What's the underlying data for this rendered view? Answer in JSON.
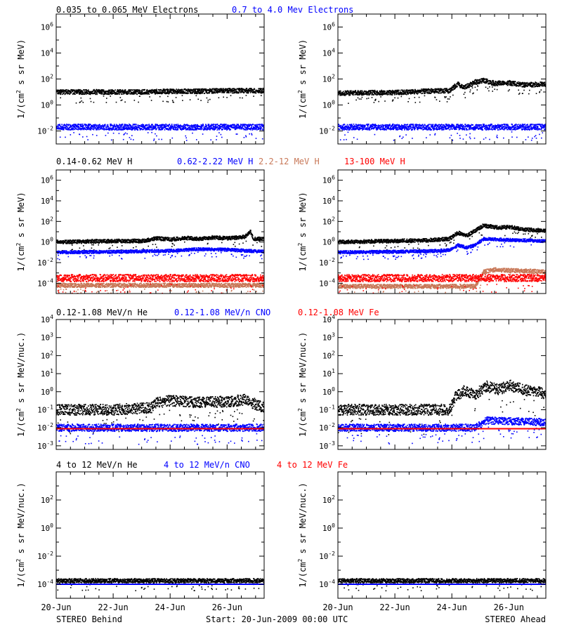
{
  "colors": {
    "black": "#000000",
    "blue": "#0000ff",
    "brown": "#c87858",
    "red": "#ff0000"
  },
  "legends": [
    [
      {
        "text": "0.035 to 0.065 MeV Electrons",
        "color": "#000000"
      },
      {
        "text": "0.7 to 4.0 Mev Electrons",
        "color": "#0000ff"
      }
    ],
    [
      {
        "text": "0.14-0.62 MeV H",
        "color": "#000000"
      },
      {
        "text": "0.62-2.22 MeV H",
        "color": "#0000ff"
      },
      {
        "text": "2.2-12 MeV H",
        "color": "#c87858"
      },
      {
        "text": "13-100 MeV H",
        "color": "#ff0000"
      }
    ],
    [
      {
        "text": "0.12-1.08 MeV/n He",
        "color": "#000000"
      },
      {
        "text": "0.12-1.08 MeV/n CNO",
        "color": "#0000ff"
      },
      {
        "text": "0.12-1.08 MeV Fe",
        "color": "#ff0000"
      }
    ],
    [
      {
        "text": "4 to 12 MeV/n He",
        "color": "#000000"
      },
      {
        "text": "4 to 12 MeV/n CNO",
        "color": "#0000ff"
      },
      {
        "text": "4 to 12 MeV Fe",
        "color": "#ff0000"
      }
    ]
  ],
  "footer": {
    "left": "STEREO Behind",
    "center": "Start: 20-Jun-2009 00:00 UTC",
    "right": "STEREO Ahead"
  },
  "x_axis": {
    "ticks": [
      {
        "day": 0,
        "label": "20-Jun"
      },
      {
        "day": 2,
        "label": "22-Jun"
      },
      {
        "day": 4,
        "label": "24-Jun"
      },
      {
        "day": 6,
        "label": "26-Jun"
      }
    ],
    "minor_step_days": 0.5,
    "range_days": [
      0,
      7.3
    ]
  },
  "chart_data": [
    {
      "type": "scatter",
      "row": 0,
      "column": "left",
      "spacecraft": "STEREO Behind",
      "ylabel": "1/(cm2 s sr MeV)",
      "yscale": "log",
      "ylim_exp": [
        -3,
        7
      ],
      "yticks": [
        {
          "exp": -2,
          "label": "10-2"
        },
        {
          "exp": 0,
          "label": "100"
        },
        {
          "exp": 2,
          "label": "102"
        },
        {
          "exp": 4,
          "label": "104"
        },
        {
          "exp": 6,
          "label": "106"
        }
      ],
      "series": [
        {
          "name": "0.035 to 0.065 MeV Electrons",
          "color": "#000000",
          "band": 0.18,
          "x": [
            0,
            1,
            2,
            3,
            4,
            5,
            6,
            7.3
          ],
          "log10_y": [
            1.0,
            1.0,
            1.0,
            1.0,
            1.05,
            1.05,
            1.1,
            1.1
          ]
        },
        {
          "name": "0.7 to 4.0 Mev Electrons",
          "color": "#0000ff",
          "band": 0.22,
          "x": [
            0,
            7.3
          ],
          "log10_y": [
            -1.7,
            -1.7
          ]
        }
      ]
    },
    {
      "type": "scatter",
      "row": 0,
      "column": "right",
      "spacecraft": "STEREO Ahead",
      "ylabel": "1/(cm2 s sr MeV)",
      "yscale": "log",
      "ylim_exp": [
        -3,
        7
      ],
      "yticks": [
        {
          "exp": -2,
          "label": "10-2"
        },
        {
          "exp": 0,
          "label": "100"
        },
        {
          "exp": 2,
          "label": "102"
        },
        {
          "exp": 4,
          "label": "104"
        },
        {
          "exp": 6,
          "label": "106"
        }
      ],
      "series": [
        {
          "name": "0.035 to 0.065 MeV Electrons",
          "color": "#000000",
          "band": 0.18,
          "x": [
            0,
            1,
            2,
            3,
            3.9,
            4.2,
            4.4,
            4.8,
            5.1,
            5.5,
            6,
            6.5,
            7.3
          ],
          "log10_y": [
            0.9,
            0.95,
            0.95,
            1.05,
            1.1,
            1.6,
            1.3,
            1.75,
            1.9,
            1.65,
            1.7,
            1.55,
            1.6
          ]
        },
        {
          "name": "0.7 to 4.0 Mev Electrons",
          "color": "#0000ff",
          "band": 0.22,
          "x": [
            0,
            7.3
          ],
          "log10_y": [
            -1.7,
            -1.7
          ]
        }
      ]
    },
    {
      "type": "scatter",
      "row": 1,
      "column": "left",
      "spacecraft": "STEREO Behind",
      "ylabel": "1/(cm2 s sr MeV)",
      "yscale": "log",
      "ylim_exp": [
        -5,
        7
      ],
      "yticks": [
        {
          "exp": -4,
          "label": "10-4"
        },
        {
          "exp": -2,
          "label": "10-2"
        },
        {
          "exp": 0,
          "label": "100"
        },
        {
          "exp": 2,
          "label": "102"
        },
        {
          "exp": 4,
          "label": "104"
        },
        {
          "exp": 6,
          "label": "106"
        }
      ],
      "series": [
        {
          "name": "0.14-0.62 MeV H",
          "color": "#000000",
          "band": 0.18,
          "x": [
            0,
            1,
            2,
            3,
            3.5,
            4,
            4.5,
            5,
            5.5,
            6,
            6.6,
            6.8,
            6.9,
            7.3
          ],
          "log10_y": [
            0.0,
            0.05,
            0.1,
            0.1,
            0.35,
            0.25,
            0.4,
            0.3,
            0.45,
            0.35,
            0.5,
            1.0,
            0.3,
            0.3
          ]
        },
        {
          "name": "0.62-2.22 MeV H",
          "color": "#0000ff",
          "band": 0.15,
          "x": [
            0,
            2,
            4,
            5,
            6,
            7.3
          ],
          "log10_y": [
            -1.0,
            -0.95,
            -0.85,
            -0.7,
            -0.75,
            -0.95
          ]
        },
        {
          "name": "2.2-12 MeV H",
          "color": "#c87858",
          "band": 0.2,
          "x": [
            0,
            7.3
          ],
          "log10_y": [
            -4.2,
            -4.2
          ]
        },
        {
          "name": "13-100 MeV H",
          "color": "#ff0000",
          "band": 0.35,
          "x": [
            0,
            7.3
          ],
          "log10_y": [
            -3.5,
            -3.5
          ]
        }
      ]
    },
    {
      "type": "scatter",
      "row": 1,
      "column": "right",
      "spacecraft": "STEREO Ahead",
      "ylabel": "1/(cm2 s sr MeV)",
      "yscale": "log",
      "ylim_exp": [
        -5,
        7
      ],
      "yticks": [
        {
          "exp": -4,
          "label": "10-4"
        },
        {
          "exp": -2,
          "label": "10-2"
        },
        {
          "exp": 0,
          "label": "100"
        },
        {
          "exp": 2,
          "label": "102"
        },
        {
          "exp": 4,
          "label": "104"
        },
        {
          "exp": 6,
          "label": "106"
        }
      ],
      "series": [
        {
          "name": "0.14-0.62 MeV H",
          "color": "#000000",
          "band": 0.18,
          "x": [
            0,
            1,
            2,
            3,
            3.9,
            4.2,
            4.5,
            4.8,
            5.1,
            5.6,
            6,
            6.6,
            7.3
          ],
          "log10_y": [
            0.0,
            0.05,
            0.1,
            0.15,
            0.3,
            0.9,
            0.6,
            1.1,
            1.6,
            1.4,
            1.45,
            1.2,
            1.1
          ]
        },
        {
          "name": "0.62-2.22 MeV H",
          "color": "#0000ff",
          "band": 0.15,
          "x": [
            0,
            2,
            3,
            3.9,
            4.2,
            4.5,
            4.8,
            5.1,
            6,
            7.3
          ],
          "log10_y": [
            -1.0,
            -0.95,
            -0.9,
            -0.8,
            -0.3,
            -0.55,
            -0.3,
            0.3,
            0.2,
            0.1
          ]
        },
        {
          "name": "2.2-12 MeV H",
          "color": "#c87858",
          "band": 0.2,
          "x": [
            0,
            4.8,
            5.1,
            5.5,
            6,
            7.3
          ],
          "log10_y": [
            -4.3,
            -4.3,
            -2.9,
            -2.7,
            -2.75,
            -2.9
          ]
        },
        {
          "name": "13-100 MeV H",
          "color": "#ff0000",
          "band": 0.35,
          "x": [
            0,
            7.3
          ],
          "log10_y": [
            -3.5,
            -3.5
          ]
        }
      ]
    },
    {
      "type": "scatter",
      "row": 2,
      "column": "left",
      "spacecraft": "STEREO Behind",
      "ylabel": "1/(cm2 s sr MeV/nuc.)",
      "yscale": "log",
      "ylim_exp": [
        -3.2,
        4
      ],
      "yticks": [
        {
          "exp": -3,
          "label": "10-3"
        },
        {
          "exp": -2,
          "label": "10-2"
        },
        {
          "exp": -1,
          "label": "10-1"
        },
        {
          "exp": 0,
          "label": "100"
        },
        {
          "exp": 1,
          "label": "101"
        },
        {
          "exp": 2,
          "label": "102"
        },
        {
          "exp": 3,
          "label": "103"
        },
        {
          "exp": 4,
          "label": "104"
        }
      ],
      "series": [
        {
          "name": "0.12-1.08 MeV/n He",
          "color": "#000000",
          "band": 0.3,
          "x": [
            0,
            2,
            3.3,
            3.5,
            4,
            5,
            6,
            6.6,
            7.3
          ],
          "log10_y": [
            -1.0,
            -1.0,
            -0.9,
            -0.6,
            -0.5,
            -0.6,
            -0.55,
            -0.45,
            -0.9
          ]
        },
        {
          "name": "0.12-1.08 MeV/n CNO",
          "color": "#0000ff",
          "band": 0.2,
          "x": [
            0,
            7.3
          ],
          "log10_y": [
            -2.0,
            -2.0
          ]
        },
        {
          "name": "0.12-1.08 MeV Fe",
          "color": "#ff0000",
          "band": 0.0,
          "x": [
            0,
            7.3
          ],
          "log10_y": [
            -2.05,
            -2.05
          ]
        }
      ]
    },
    {
      "type": "scatter",
      "row": 2,
      "column": "right",
      "spacecraft": "STEREO Ahead",
      "ylabel": "1/(cm2 s sr MeV/nuc.)",
      "yscale": "log",
      "ylim_exp": [
        -3.2,
        4
      ],
      "yticks": [
        {
          "exp": -3,
          "label": "10-3"
        },
        {
          "exp": -2,
          "label": "10-2"
        },
        {
          "exp": -1,
          "label": "10-1"
        },
        {
          "exp": 0,
          "label": "100"
        },
        {
          "exp": 1,
          "label": "101"
        },
        {
          "exp": 2,
          "label": "102"
        },
        {
          "exp": 3,
          "label": "103"
        },
        {
          "exp": 4,
          "label": "104"
        }
      ],
      "series": [
        {
          "name": "0.12-1.08 MeV/n He",
          "color": "#000000",
          "band": 0.3,
          "x": [
            0,
            2,
            3.9,
            4.1,
            4.4,
            4.8,
            5.2,
            5.6,
            6,
            6.5,
            7.3
          ],
          "log10_y": [
            -1.0,
            -1.0,
            -1.0,
            -0.3,
            0.05,
            -0.15,
            0.3,
            0.1,
            0.35,
            0.1,
            -0.1
          ]
        },
        {
          "name": "0.12-1.08 MeV/n CNO",
          "color": "#0000ff",
          "band": 0.2,
          "x": [
            0,
            4.8,
            5.2,
            7.3
          ],
          "log10_y": [
            -2.0,
            -2.0,
            -1.6,
            -1.7
          ]
        },
        {
          "name": "0.12-1.08 MeV Fe",
          "color": "#ff0000",
          "band": 0.0,
          "x": [
            0,
            7.3
          ],
          "log10_y": [
            -2.05,
            -2.05
          ]
        }
      ]
    },
    {
      "type": "scatter",
      "row": 3,
      "column": "left",
      "spacecraft": "STEREO Behind",
      "ylabel": "1/(cm2 s sr MeV/nuc.)",
      "yscale": "log",
      "ylim_exp": [
        -5,
        4
      ],
      "yticks": [
        {
          "exp": -4,
          "label": "10-4"
        },
        {
          "exp": -2,
          "label": "10-2"
        },
        {
          "exp": 0,
          "label": "100"
        },
        {
          "exp": 2,
          "label": "102"
        }
      ],
      "series": [
        {
          "name": "4 to 12 MeV/n He",
          "color": "#000000",
          "band": 0.15,
          "x": [
            0,
            7.3
          ],
          "log10_y": [
            -3.75,
            -3.75
          ]
        },
        {
          "name": "4 to 12 MeV/n CNO",
          "color": "#0000ff",
          "band": 0.0,
          "x": [
            0,
            7.3
          ],
          "log10_y": [
            -4.0,
            -4.0
          ]
        }
      ]
    },
    {
      "type": "scatter",
      "row": 3,
      "column": "right",
      "spacecraft": "STEREO Ahead",
      "ylabel": "1/(cm2 s sr MeV/nuc.)",
      "yscale": "log",
      "ylim_exp": [
        -5,
        4
      ],
      "yticks": [
        {
          "exp": -4,
          "label": "10-4"
        },
        {
          "exp": -2,
          "label": "10-2"
        },
        {
          "exp": 0,
          "label": "100"
        },
        {
          "exp": 2,
          "label": "102"
        }
      ],
      "series": [
        {
          "name": "4 to 12 MeV/n He",
          "color": "#000000",
          "band": 0.15,
          "x": [
            0,
            7.3
          ],
          "log10_y": [
            -3.75,
            -3.75
          ]
        },
        {
          "name": "4 to 12 MeV/n CNO",
          "color": "#0000ff",
          "band": 0.0,
          "x": [
            0,
            7.3
          ],
          "log10_y": [
            -4.0,
            -4.0
          ]
        }
      ]
    }
  ]
}
